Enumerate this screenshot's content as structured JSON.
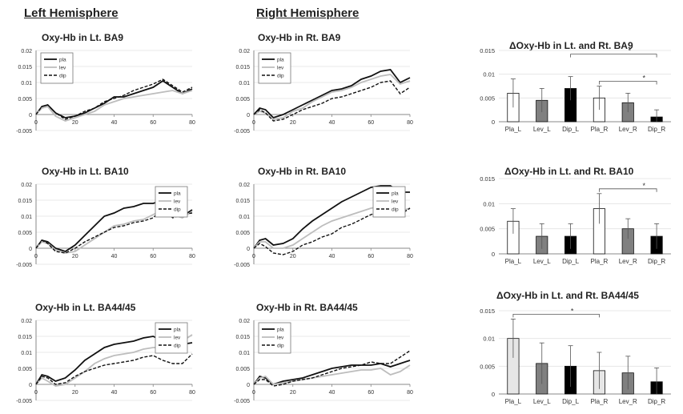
{
  "headers": {
    "left": "Left Hemisphere",
    "right": "Right Hemisphere"
  },
  "chart_data": [
    {
      "type": "line",
      "title": "Oxy-Hb in Lt. BA9",
      "xlim": [
        0,
        80
      ],
      "ylim": [
        -0.005,
        0.02
      ],
      "xticks": [
        0,
        20,
        40,
        60,
        80
      ],
      "yticks": [
        -0.005,
        0,
        0.005,
        0.01,
        0.015,
        0.02
      ],
      "ytick_labels": [
        "-0.005",
        "0",
        "0.005",
        "0.01",
        "0.015",
        "0.02"
      ],
      "legend": "top-left",
      "x": [
        0,
        3,
        6,
        10,
        15,
        20,
        25,
        30,
        35,
        40,
        45,
        50,
        55,
        60,
        65,
        70,
        75,
        80
      ],
      "series": [
        {
          "name": "pla",
          "style": "solid-black",
          "values": [
            0,
            0.0025,
            0.003,
            0.0005,
            -0.001,
            -0.0005,
            0.0005,
            0.002,
            0.0035,
            0.0055,
            0.0055,
            0.0065,
            0.0075,
            0.0085,
            0.0105,
            0.0085,
            0.0065,
            0.008
          ]
        },
        {
          "name": "lev",
          "style": "solid-gray",
          "values": [
            0,
            0.002,
            0.0025,
            -0.0005,
            -0.002,
            -0.001,
            0,
            0.001,
            0.003,
            0.004,
            0.005,
            0.0055,
            0.006,
            0.0065,
            0.007,
            0.0075,
            0.0065,
            0.0075
          ]
        },
        {
          "name": "dip",
          "style": "dashed-black",
          "values": [
            0,
            0.0025,
            0.003,
            0.0005,
            -0.0015,
            -0.0005,
            0.001,
            0.002,
            0.004,
            0.005,
            0.006,
            0.0075,
            0.0085,
            0.0095,
            0.011,
            0.009,
            0.007,
            0.0085
          ]
        }
      ]
    },
    {
      "type": "line",
      "title": "Oxy-Hb in Rt. BA9",
      "xlim": [
        0,
        80
      ],
      "ylim": [
        -0.005,
        0.02
      ],
      "xticks": [
        0,
        20,
        40,
        60,
        80
      ],
      "yticks": [
        -0.005,
        0,
        0.005,
        0.01,
        0.015,
        0.02
      ],
      "ytick_labels": [
        "-0.005",
        "0",
        "0.005",
        "0.01",
        "0.015",
        "0.02"
      ],
      "legend": "top-left",
      "x": [
        0,
        3,
        6,
        10,
        15,
        20,
        25,
        30,
        35,
        40,
        45,
        50,
        55,
        60,
        65,
        70,
        75,
        80
      ],
      "series": [
        {
          "name": "pla",
          "style": "solid-black",
          "values": [
            0,
            0.002,
            0.0015,
            -0.001,
            0,
            0.0015,
            0.003,
            0.0045,
            0.006,
            0.0075,
            0.008,
            0.009,
            0.011,
            0.012,
            0.0135,
            0.014,
            0.01,
            0.0115
          ]
        },
        {
          "name": "lev",
          "style": "solid-gray",
          "values": [
            0,
            0.001,
            0.0005,
            -0.0015,
            -0.001,
            0.001,
            0.002,
            0.004,
            0.0055,
            0.007,
            0.0075,
            0.0085,
            0.01,
            0.011,
            0.012,
            0.0125,
            0.0095,
            0.0105
          ]
        },
        {
          "name": "dip",
          "style": "dashed-black",
          "values": [
            0,
            0.0015,
            0.0005,
            -0.002,
            -0.0015,
            0,
            0.0015,
            0.0025,
            0.0035,
            0.005,
            0.0055,
            0.0065,
            0.0075,
            0.0085,
            0.01,
            0.0105,
            0.0065,
            0.0085
          ]
        }
      ]
    },
    {
      "type": "line",
      "title": "Oxy-Hb in Lt. BA10",
      "xlim": [
        0,
        80
      ],
      "ylim": [
        -0.005,
        0.02
      ],
      "xticks": [
        0,
        20,
        40,
        60,
        80
      ],
      "yticks": [
        -0.005,
        0,
        0.005,
        0.01,
        0.015,
        0.02
      ],
      "ytick_labels": [
        "-0.005",
        "0",
        "0.005",
        "0.01",
        "0.015",
        "0.02"
      ],
      "legend": "top-right",
      "x": [
        0,
        3,
        6,
        10,
        15,
        20,
        25,
        30,
        35,
        40,
        45,
        50,
        55,
        60,
        65,
        70,
        75,
        80
      ],
      "series": [
        {
          "name": "pla",
          "style": "solid-black",
          "values": [
            0,
            0.0025,
            0.002,
            0,
            -0.001,
            0.001,
            0.004,
            0.007,
            0.01,
            0.011,
            0.0125,
            0.013,
            0.014,
            0.014,
            0.015,
            0.0125,
            0.01,
            0.012
          ]
        },
        {
          "name": "lev",
          "style": "solid-gray",
          "values": [
            0,
            0.002,
            0.0015,
            -0.0005,
            -0.0015,
            -0.001,
            0.001,
            0.003,
            0.005,
            0.007,
            0.0075,
            0.0085,
            0.009,
            0.0105,
            0.012,
            0.0105,
            0.0095,
            0.0115
          ]
        },
        {
          "name": "dip",
          "style": "dashed-black",
          "values": [
            0,
            0.0025,
            0.0015,
            -0.001,
            -0.0015,
            0,
            0.002,
            0.0035,
            0.005,
            0.0065,
            0.007,
            0.008,
            0.0085,
            0.0095,
            0.0125,
            0.0095,
            0.0105,
            0.011
          ]
        }
      ]
    },
    {
      "type": "line",
      "title": "Oxy-Hb in Rt. BA10",
      "xlim": [
        0,
        80
      ],
      "ylim": [
        -0.005,
        0.02
      ],
      "xticks": [
        0,
        20,
        40,
        60,
        80
      ],
      "yticks": [
        -0.005,
        0,
        0.005,
        0.01,
        0.015,
        0.02
      ],
      "ytick_labels": [
        "-0.005",
        "0",
        "0.005",
        "0.01",
        "0.015",
        "0.02"
      ],
      "legend": "top-right",
      "x": [
        0,
        3,
        6,
        10,
        15,
        20,
        25,
        30,
        35,
        40,
        45,
        50,
        55,
        60,
        65,
        70,
        75,
        80
      ],
      "series": [
        {
          "name": "pla",
          "style": "solid-black",
          "values": [
            0,
            0.0025,
            0.003,
            0.001,
            0.0015,
            0.003,
            0.006,
            0.0085,
            0.0105,
            0.0125,
            0.0145,
            0.016,
            0.0175,
            0.019,
            0.0195,
            0.0195,
            0.0175,
            0.0175
          ]
        },
        {
          "name": "lev",
          "style": "solid-gray",
          "values": [
            0,
            0.002,
            0.002,
            0,
            0,
            0.001,
            0.003,
            0.005,
            0.007,
            0.0085,
            0.0095,
            0.0105,
            0.0115,
            0.0125,
            0.013,
            0.0135,
            0.0115,
            0.0125
          ]
        },
        {
          "name": "dip",
          "style": "dashed-black",
          "values": [
            0,
            0.0015,
            0.0005,
            -0.0015,
            -0.002,
            -0.001,
            0.001,
            0.002,
            0.0035,
            0.0045,
            0.0065,
            0.0075,
            0.009,
            0.0105,
            0.0115,
            0.0125,
            0.0105,
            0.0125
          ]
        }
      ]
    },
    {
      "type": "line",
      "title": "Oxy-Hb in Lt. BA44/45",
      "xlim": [
        0,
        80
      ],
      "ylim": [
        -0.005,
        0.02
      ],
      "xticks": [
        0,
        20,
        40,
        60,
        80
      ],
      "yticks": [
        -0.005,
        0,
        0.005,
        0.01,
        0.015,
        0.02
      ],
      "ytick_labels": [
        "-0.005",
        "0",
        "0.005",
        "0.01",
        "0.015",
        "0.02"
      ],
      "legend": "top-right",
      "x": [
        0,
        3,
        6,
        10,
        15,
        20,
        25,
        30,
        35,
        40,
        45,
        50,
        55,
        60,
        65,
        70,
        75,
        80
      ],
      "series": [
        {
          "name": "pla",
          "style": "solid-black",
          "values": [
            0,
            0.003,
            0.0025,
            0.001,
            0.002,
            0.0045,
            0.0075,
            0.0095,
            0.0115,
            0.0125,
            0.013,
            0.0135,
            0.0145,
            0.015,
            0.0135,
            0.014,
            0.0125,
            0.013
          ]
        },
        {
          "name": "lev",
          "style": "solid-gray",
          "values": [
            0,
            0.002,
            0.001,
            -0.0005,
            0,
            0.002,
            0.004,
            0.0065,
            0.008,
            0.009,
            0.0095,
            0.01,
            0.011,
            0.0115,
            0.0115,
            0.012,
            0.0135,
            0.0155
          ]
        },
        {
          "name": "dip",
          "style": "dashed-black",
          "values": [
            0,
            0.0025,
            0.002,
            0,
            0.0005,
            0.0025,
            0.004,
            0.005,
            0.006,
            0.0065,
            0.007,
            0.0075,
            0.0085,
            0.009,
            0.0075,
            0.0065,
            0.0065,
            0.0095
          ]
        }
      ]
    },
    {
      "type": "line",
      "title": "Oxy-Hb in Rt. BA44/45",
      "xlim": [
        0,
        80
      ],
      "ylim": [
        -0.005,
        0.02
      ],
      "xticks": [
        0,
        20,
        40,
        60,
        80
      ],
      "yticks": [
        -0.005,
        0,
        0.005,
        0.01,
        0.015,
        0.02
      ],
      "ytick_labels": [
        "-0.005",
        "0",
        "0.005",
        "0.01",
        "0.015",
        "0.02"
      ],
      "legend": "top-left",
      "x": [
        0,
        3,
        6,
        10,
        15,
        20,
        25,
        30,
        35,
        40,
        45,
        50,
        55,
        60,
        65,
        70,
        75,
        80
      ],
      "series": [
        {
          "name": "pla",
          "style": "solid-black",
          "values": [
            0,
            0.0025,
            0.002,
            0,
            0.001,
            0.0015,
            0.002,
            0.003,
            0.004,
            0.005,
            0.0055,
            0.006,
            0.006,
            0.006,
            0.0065,
            0.0055,
            0.0065,
            0.0075
          ]
        },
        {
          "name": "lev",
          "style": "solid-gray",
          "values": [
            0,
            0.002,
            0.0025,
            0,
            0.0005,
            0.001,
            0.0015,
            0.002,
            0.0025,
            0.003,
            0.0035,
            0.004,
            0.0045,
            0.0045,
            0.005,
            0.003,
            0.004,
            0.006
          ]
        },
        {
          "name": "dip",
          "style": "dashed-black",
          "values": [
            0,
            0.0015,
            0.0015,
            -0.0005,
            0,
            0.001,
            0.0015,
            0.002,
            0.003,
            0.004,
            0.005,
            0.0055,
            0.006,
            0.007,
            0.0065,
            0.0065,
            0.0085,
            0.0105
          ]
        }
      ]
    },
    {
      "type": "bar",
      "title": "ΔOxy-Hb in Lt. and Rt. BA9",
      "categories": [
        "Pla_L",
        "Lev_L",
        "Dip_L",
        "Pla_R",
        "Lev_R",
        "Dip_R"
      ],
      "values": [
        0.006,
        0.0045,
        0.007,
        0.005,
        0.004,
        0.001
      ],
      "errors": [
        0.003,
        0.0025,
        0.0025,
        0.0025,
        0.002,
        0.0015
      ],
      "bar_fills": [
        "#ffffff",
        "#808080",
        "#000000",
        "#ffffff",
        "#808080",
        "#000000"
      ],
      "ylim": [
        0,
        0.015
      ],
      "yticks": [
        0,
        0.005,
        0.01,
        0.015
      ],
      "ytick_labels": [
        "0",
        "0.005",
        "0.01",
        "0.015"
      ],
      "significance": [
        {
          "from": 2,
          "to": 5,
          "label": "*"
        },
        {
          "from": 3,
          "to": 5,
          "label": "*"
        }
      ]
    },
    {
      "type": "bar",
      "title": "ΔOxy-Hb in Lt. and Rt. BA10",
      "categories": [
        "Pla_L",
        "Lev_L",
        "Dip_L",
        "Pla_R",
        "Lev_R",
        "Dip_R"
      ],
      "values": [
        0.0065,
        0.0035,
        0.0035,
        0.009,
        0.005,
        0.0035
      ],
      "errors": [
        0.0025,
        0.0025,
        0.0025,
        0.003,
        0.002,
        0.0025
      ],
      "bar_fills": [
        "#ffffff",
        "#808080",
        "#000000",
        "#ffffff",
        "#808080",
        "#000000"
      ],
      "ylim": [
        0,
        0.015
      ],
      "yticks": [
        0,
        0.005,
        0.01,
        0.015
      ],
      "ytick_labels": [
        "0",
        "0.005",
        "0.01",
        "0.015"
      ],
      "significance": [
        {
          "from": 3,
          "to": 5,
          "label": "*"
        }
      ]
    },
    {
      "type": "bar",
      "title": "ΔOxy-Hb in Lt. and Rt. BA44/45",
      "categories": [
        "Pla_L",
        "Lev_L",
        "Dip_L",
        "Pla_R",
        "Lev_R",
        "Dip_R"
      ],
      "values": [
        0.01,
        0.0055,
        0.005,
        0.0042,
        0.0038,
        0.0022
      ],
      "errors": [
        0.0035,
        0.0037,
        0.0037,
        0.0033,
        0.003,
        0.0025
      ],
      "bar_fills": [
        "#e6e6e6",
        "#808080",
        "#000000",
        "#e6e6e6",
        "#808080",
        "#000000"
      ],
      "ylim": [
        0,
        0.015
      ],
      "yticks": [
        0,
        0.005,
        0.01,
        0.015
      ],
      "ytick_labels": [
        "0",
        "0.005",
        "0.01",
        "0.015"
      ],
      "significance": [
        {
          "from": 0,
          "to": 3,
          "label": "*"
        }
      ]
    }
  ]
}
